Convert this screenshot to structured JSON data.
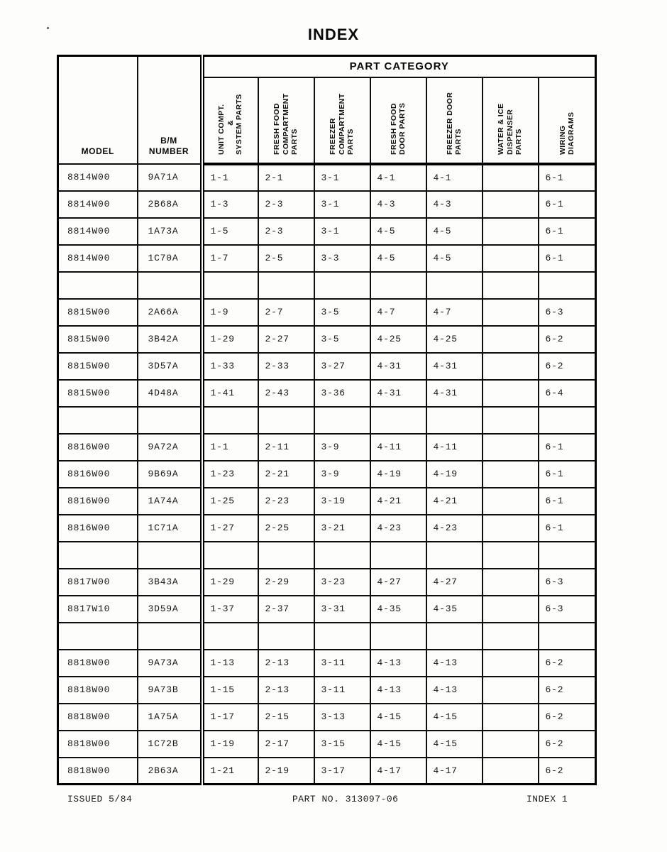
{
  "page": {
    "title": "INDEX",
    "footer": {
      "issued": "ISSUED 5/84",
      "part_no": "PART NO. 313097-06",
      "page_label": "INDEX 1"
    }
  },
  "table": {
    "headers": {
      "model": "MODEL",
      "bm_line1": "B/M",
      "bm_line2": "NUMBER",
      "part_category": "PART CATEGORY",
      "categories": [
        {
          "name": "unit-compt-system-parts",
          "lines": [
            "UNIT COMPT.",
            "&",
            "SYSTEM PARTS"
          ]
        },
        {
          "name": "fresh-food-compartment-parts",
          "lines": [
            "FRESH FOOD",
            "COMPARTMENT",
            "PARTS"
          ]
        },
        {
          "name": "freezer-compartment-parts",
          "lines": [
            "FREEZER",
            "COMPARTMENT",
            "PARTS"
          ]
        },
        {
          "name": "fresh-food-door-parts",
          "lines": [
            "FRESH FOOD",
            "DOOR PARTS"
          ]
        },
        {
          "name": "freezer-door-parts",
          "lines": [
            "FREEZER DOOR",
            "PARTS"
          ]
        },
        {
          "name": "water-ice-dispenser-parts",
          "lines": [
            "WATER & ICE",
            "DISPENSER",
            "PARTS"
          ]
        },
        {
          "name": "wiring-diagrams",
          "lines": [
            "WIRING",
            "DIAGRAMS"
          ]
        }
      ]
    },
    "rows": [
      {
        "model": "8814W00",
        "bm": "9A71A",
        "cells": [
          "1-1",
          "2-1",
          "3-1",
          "4-1",
          "4-1",
          "",
          "6-1"
        ]
      },
      {
        "model": "8814W00",
        "bm": "2B68A",
        "cells": [
          "1-3",
          "2-3",
          "3-1",
          "4-3",
          "4-3",
          "",
          "6-1"
        ]
      },
      {
        "model": "8814W00",
        "bm": "1A73A",
        "cells": [
          "1-5",
          "2-3",
          "3-1",
          "4-5",
          "4-5",
          "",
          "6-1"
        ]
      },
      {
        "model": "8814W00",
        "bm": "1C70A",
        "cells": [
          "1-7",
          "2-5",
          "3-3",
          "4-5",
          "4-5",
          "",
          "6-1"
        ]
      },
      {
        "model": "",
        "bm": "",
        "cells": [
          "",
          "",
          "",
          "",
          "",
          "",
          ""
        ]
      },
      {
        "model": "8815W00",
        "bm": "2A66A",
        "cells": [
          "1-9",
          "2-7",
          "3-5",
          "4-7",
          "4-7",
          "",
          "6-3"
        ]
      },
      {
        "model": "8815W00",
        "bm": "3B42A",
        "cells": [
          "1-29",
          "2-27",
          "3-5",
          "4-25",
          "4-25",
          "",
          "6-2"
        ]
      },
      {
        "model": "8815W00",
        "bm": "3D57A",
        "cells": [
          "1-33",
          "2-33",
          "3-27",
          "4-31",
          "4-31",
          "",
          "6-2"
        ]
      },
      {
        "model": "8815W00",
        "bm": "4D48A",
        "cells": [
          "1-41",
          "2-43",
          "3-36",
          "4-31",
          "4-31",
          "",
          "6-4"
        ]
      },
      {
        "model": "",
        "bm": "",
        "cells": [
          "",
          "",
          "",
          "",
          "",
          "",
          ""
        ]
      },
      {
        "model": "8816W00",
        "bm": "9A72A",
        "cells": [
          "1-1",
          "2-11",
          "3-9",
          "4-11",
          "4-11",
          "",
          "6-1"
        ]
      },
      {
        "model": "8816W00",
        "bm": "9B69A",
        "cells": [
          "1-23",
          "2-21",
          "3-9",
          "4-19",
          "4-19",
          "",
          "6-1"
        ]
      },
      {
        "model": "8816W00",
        "bm": "1A74A",
        "cells": [
          "1-25",
          "2-23",
          "3-19",
          "4-21",
          "4-21",
          "",
          "6-1"
        ]
      },
      {
        "model": "8816W00",
        "bm": "1C71A",
        "cells": [
          "1-27",
          "2-25",
          "3-21",
          "4-23",
          "4-23",
          "",
          "6-1"
        ]
      },
      {
        "model": "",
        "bm": "",
        "cells": [
          "",
          "",
          "",
          "",
          "",
          "",
          ""
        ]
      },
      {
        "model": "8817W00",
        "bm": "3B43A",
        "cells": [
          "1-29",
          "2-29",
          "3-23",
          "4-27",
          "4-27",
          "",
          "6-3"
        ]
      },
      {
        "model": "8817W10",
        "bm": "3D59A",
        "cells": [
          "1-37",
          "2-37",
          "3-31",
          "4-35",
          "4-35",
          "",
          "6-3"
        ]
      },
      {
        "model": "",
        "bm": "",
        "cells": [
          "",
          "",
          "",
          "",
          "",
          "",
          ""
        ]
      },
      {
        "model": "8818W00",
        "bm": "9A73A",
        "cells": [
          "1-13",
          "2-13",
          "3-11",
          "4-13",
          "4-13",
          "",
          "6-2"
        ]
      },
      {
        "model": "8818W00",
        "bm": "9A73B",
        "cells": [
          "1-15",
          "2-13",
          "3-11",
          "4-13",
          "4-13",
          "",
          "6-2"
        ]
      },
      {
        "model": "8818W00",
        "bm": "1A75A",
        "cells": [
          "1-17",
          "2-15",
          "3-13",
          "4-15",
          "4-15",
          "",
          "6-2"
        ]
      },
      {
        "model": "8818W00",
        "bm": "1C72B",
        "cells": [
          "1-19",
          "2-17",
          "3-15",
          "4-15",
          "4-15",
          "",
          "6-2"
        ]
      },
      {
        "model": "8818W00",
        "bm": "2B63A",
        "cells": [
          "1-21",
          "2-19",
          "3-17",
          "4-17",
          "4-17",
          "",
          "6-2"
        ]
      }
    ]
  },
  "colors": {
    "paper": "#fdfdfb",
    "ink": "#111111"
  }
}
